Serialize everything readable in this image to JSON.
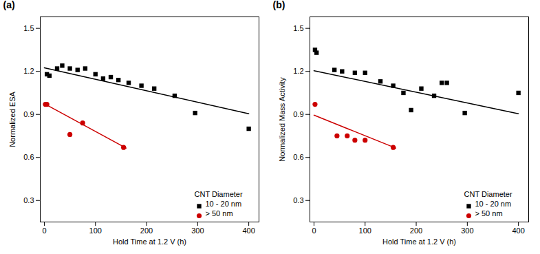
{
  "chart_data": [
    {
      "type": "scatter",
      "title": "(a)",
      "xlabel": "Hold Time at 1.2 V (h)",
      "ylabel": "Normalized ESA",
      "xlim": [
        -8,
        420
      ],
      "ylim": [
        0.15,
        1.58
      ],
      "xticks": [
        0,
        100,
        200,
        300,
        400
      ],
      "yticks": [
        0.3,
        0.6,
        0.9,
        1.2,
        1.5
      ],
      "legend": "lower right",
      "legend_title": "CNT Diameter",
      "series": [
        {
          "name": "10 - 20 nm",
          "color": "#000000",
          "marker": "square",
          "x": [
            5,
            10,
            25,
            35,
            50,
            65,
            80,
            100,
            115,
            130,
            145,
            165,
            190,
            215,
            255,
            295,
            400
          ],
          "values": [
            1.18,
            1.17,
            1.22,
            1.24,
            1.22,
            1.21,
            1.22,
            1.18,
            1.15,
            1.16,
            1.14,
            1.12,
            1.1,
            1.08,
            1.03,
            0.91,
            0.8
          ]
        },
        {
          "name": "> 50 nm",
          "color": "#cc0000",
          "marker": "circle",
          "x": [
            2,
            5,
            50,
            75,
            155
          ],
          "values": [
            0.97,
            0.97,
            0.76,
            0.84,
            0.67
          ]
        },
        {
          "type": "line",
          "color": "#000000",
          "x": [
            0,
            400
          ],
          "values": [
            1.225,
            0.905
          ]
        },
        {
          "type": "line",
          "color": "#cc0000",
          "x": [
            0,
            160
          ],
          "values": [
            0.975,
            0.665
          ]
        }
      ]
    },
    {
      "type": "scatter",
      "title": "(b)",
      "xlabel": "Hold Time at 1.2 V (h)",
      "ylabel": "Normalized Mass Activity",
      "xlim": [
        -8,
        420
      ],
      "ylim": [
        0.15,
        1.58
      ],
      "xticks": [
        0,
        100,
        200,
        300,
        400
      ],
      "yticks": [
        0.3,
        0.6,
        0.9,
        1.2,
        1.5
      ],
      "legend": "lower right",
      "legend_title": "CNT Diameter",
      "series": [
        {
          "name": "10 - 20 nm",
          "color": "#000000",
          "marker": "square",
          "x": [
            2,
            5,
            40,
            55,
            80,
            100,
            130,
            155,
            175,
            190,
            210,
            235,
            250,
            260,
            295,
            400
          ],
          "values": [
            1.35,
            1.33,
            1.21,
            1.2,
            1.19,
            1.19,
            1.13,
            1.1,
            1.05,
            0.93,
            1.08,
            1.03,
            1.12,
            1.12,
            0.91,
            1.05
          ]
        },
        {
          "name": "> 50 nm",
          "color": "#cc0000",
          "marker": "circle",
          "x": [
            2,
            45,
            65,
            80,
            100,
            155
          ],
          "values": [
            0.97,
            0.75,
            0.75,
            0.72,
            0.72,
            0.67
          ]
        },
        {
          "type": "line",
          "color": "#000000",
          "x": [
            0,
            400
          ],
          "values": [
            1.205,
            0.905
          ]
        },
        {
          "type": "line",
          "color": "#cc0000",
          "x": [
            0,
            160
          ],
          "values": [
            0.895,
            0.665
          ]
        }
      ]
    }
  ]
}
